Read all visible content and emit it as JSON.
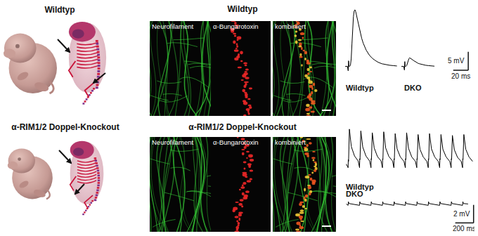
{
  "figure": {
    "photos": {
      "rows": [
        {
          "label": "Wildtyp"
        },
        {
          "label": "α-RIM1/2 Doppel-Knockout"
        }
      ]
    },
    "microscopy": {
      "rows": [
        {
          "title": "Wildtyp",
          "channels": [
            "Neurofilament",
            "α-Bungarotoxin",
            "kombiniert"
          ]
        },
        {
          "title": "α-RIM1/2 Doppel-Knockout",
          "channels": [
            "Neurofilament",
            "α-Bungarotoxin",
            "kombiniert"
          ]
        }
      ]
    }
  },
  "chart_data": [
    {
      "type": "line",
      "tick_labels": false,
      "xlim": [
        -5,
        70
      ],
      "ylim": [
        -2,
        17
      ],
      "series": [
        {
          "name": "Wildtyp",
          "color": "#000000",
          "x": [
            -4,
            -1,
            0,
            0.5,
            1,
            2,
            3,
            4,
            5,
            6,
            7,
            8,
            9,
            10,
            12,
            14,
            16,
            18,
            20,
            24,
            28,
            32,
            36,
            40,
            45,
            50,
            55,
            60,
            65
          ],
          "values": [
            0,
            0,
            -1.2,
            1.5,
            0,
            0,
            0.3,
            2,
            6,
            10.5,
            13.5,
            15,
            15.3,
            14.8,
            13,
            11,
            9.2,
            7.6,
            6.3,
            4.4,
            3.1,
            2.2,
            1.6,
            1.1,
            0.7,
            0.45,
            0.3,
            0.2,
            0.1
          ]
        }
      ]
    },
    {
      "type": "line",
      "tick_labels": false,
      "xlim": [
        -5,
        98
      ],
      "ylim": [
        -2,
        17
      ],
      "series": [
        {
          "name": "DKO",
          "color": "#000000",
          "x": [
            -4,
            -1,
            0,
            0.5,
            1,
            2,
            3,
            4,
            5,
            6,
            7,
            8,
            10,
            12,
            14,
            16,
            18,
            20,
            24,
            28,
            32,
            36,
            40
          ],
          "values": [
            0,
            0,
            -1,
            1.3,
            0,
            0,
            0.2,
            0.8,
            1.6,
            2.1,
            2.3,
            2.2,
            1.9,
            1.6,
            1.3,
            1.05,
            0.85,
            0.7,
            0.45,
            0.3,
            0.2,
            0.12,
            0.05
          ]
        }
      ],
      "scale_bar": {
        "x": {
          "value": 20,
          "label": "20 ms"
        },
        "y": {
          "value": 5,
          "label": "5 mV"
        }
      }
    },
    {
      "type": "line",
      "tick_labels": false,
      "xlim": [
        -20,
        1400
      ],
      "ylim": [
        -0.5,
        4.2
      ],
      "series": [
        {
          "name": "Wildtyp",
          "color": "#000000",
          "x": [
            0,
            20,
            22,
            25,
            34,
            55,
            90,
            130,
            145,
            147,
            150,
            159,
            180,
            215,
            255,
            270,
            272,
            275,
            284,
            305,
            340,
            380,
            395,
            397,
            400,
            409,
            430,
            465,
            505,
            520,
            522,
            525,
            534,
            555,
            590,
            630,
            645,
            647,
            650,
            659,
            680,
            715,
            755,
            770,
            772,
            775,
            784,
            805,
            840,
            880,
            895,
            897,
            900,
            909,
            930,
            965,
            1005,
            1020,
            1022,
            1025,
            1034,
            1055,
            1090,
            1130,
            1145,
            1147,
            1150,
            1159,
            1180,
            1215,
            1255,
            1270,
            1272,
            1275,
            1284,
            1305,
            1340,
            1380
          ],
          "values": [
            0,
            -0.4,
            0.5,
            0.3,
            3.9,
            1.95,
            0.9,
            0.35,
            -0.4,
            0.6,
            0.5,
            3.7,
            1.9,
            0.9,
            0.35,
            -0.4,
            0.6,
            0.5,
            3.5,
            1.8,
            0.85,
            0.35,
            -0.4,
            0.6,
            0.5,
            3.6,
            1.8,
            0.85,
            0.35,
            -0.4,
            0.6,
            0.5,
            3.4,
            1.7,
            0.8,
            0.3,
            -0.4,
            0.6,
            0.5,
            3.5,
            1.75,
            0.8,
            0.3,
            -0.4,
            0.6,
            0.5,
            3.3,
            1.65,
            0.8,
            0.3,
            -0.4,
            0.6,
            0.5,
            3.4,
            1.7,
            0.8,
            0.3,
            -0.4,
            0.6,
            0.5,
            3.3,
            1.65,
            0.8,
            0.3,
            -0.4,
            0.6,
            0.5,
            3.2,
            1.6,
            0.75,
            0.3,
            -0.4,
            0.6,
            0.5,
            3.3,
            1.65,
            0.8,
            0.3
          ]
        }
      ]
    },
    {
      "type": "line",
      "tick_labels": false,
      "xlim": [
        -20,
        1400
      ],
      "ylim": [
        -3.4,
        0.5
      ],
      "series": [
        {
          "name": "DKO",
          "color": "#000000",
          "x": [
            0,
            20,
            23,
            30,
            145,
            148,
            155,
            270,
            273,
            280,
            395,
            398,
            405,
            520,
            523,
            530,
            645,
            648,
            655,
            770,
            773,
            780,
            895,
            898,
            905,
            1020,
            1023,
            1030,
            1145,
            1148,
            1155,
            1270,
            1273,
            1280,
            1330
          ],
          "values": [
            0,
            -0.15,
            0.25,
            0.05,
            -0.15,
            0.25,
            0.05,
            -0.15,
            0.25,
            0.05,
            -0.15,
            0.25,
            0.05,
            -0.15,
            0.25,
            0.05,
            -0.15,
            0.25,
            0.05,
            -0.15,
            0.25,
            0.05,
            -0.15,
            0.25,
            0.05,
            -0.15,
            0.25,
            0.05,
            -0.15,
            0.25,
            0.05,
            -0.15,
            0.25,
            0.05,
            0
          ]
        }
      ],
      "scale_bar": {
        "x": {
          "value": 200,
          "label": "200 ms"
        },
        "y": {
          "value": 2,
          "label": "2 mV"
        }
      }
    }
  ]
}
